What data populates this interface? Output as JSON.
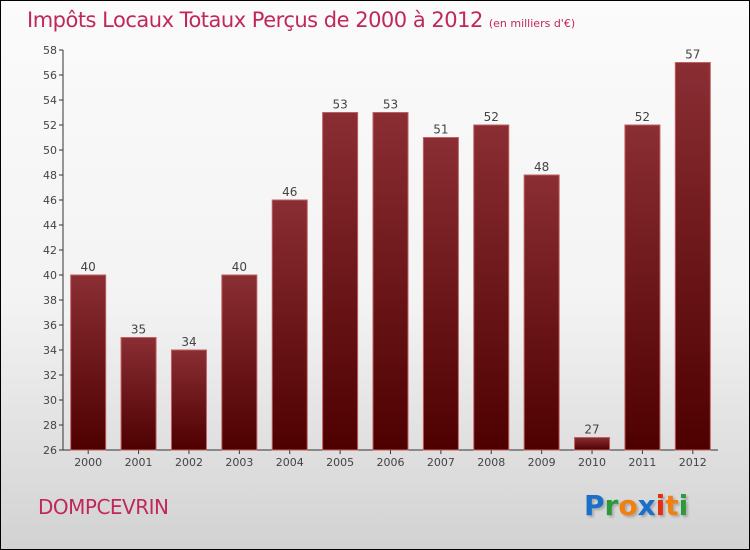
{
  "chart_data": {
    "type": "bar",
    "title": "Impôts Locaux Totaux Perçus de 2000 à 2012",
    "subtitle": "(en milliers d'€)",
    "categories": [
      "2000",
      "2001",
      "2002",
      "2003",
      "2004",
      "2005",
      "2006",
      "2007",
      "2008",
      "2009",
      "2010",
      "2011",
      "2012"
    ],
    "values": [
      40,
      35,
      34,
      40,
      46,
      53,
      53,
      51,
      52,
      48,
      27,
      52,
      57
    ],
    "ylim": [
      26,
      58
    ],
    "yticks": [
      26,
      28,
      30,
      32,
      34,
      36,
      38,
      40,
      42,
      44,
      46,
      48,
      50,
      52,
      54,
      56,
      58
    ],
    "xlabel": "",
    "ylabel": "",
    "bar_color": "#7a1a1e"
  },
  "footer": {
    "city": "DOMPCEVRIN",
    "logo": "Proxiti"
  }
}
